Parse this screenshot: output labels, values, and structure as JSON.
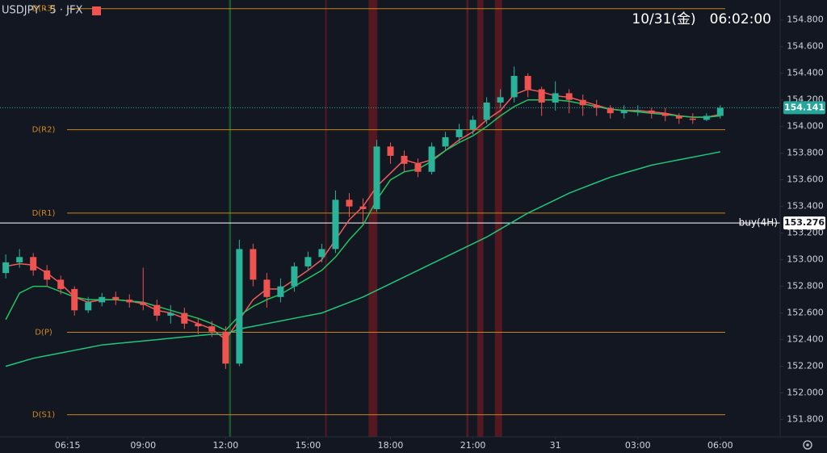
{
  "chart_data": {
    "type": "candlestick",
    "title": "USDJPY · 5 · JFX",
    "subtitle": "10/31(金)　06:02:00",
    "up_color": "#2bb39a",
    "down_color": "#ef5350",
    "x": [
      4.0,
      4.5,
      5.0,
      5.5,
      6.0,
      6.5,
      7.0,
      7.5,
      8.0,
      8.5,
      9.0,
      9.5,
      10.0,
      10.5,
      11.0,
      11.5,
      12.0,
      12.5,
      13.0,
      13.5,
      14.0,
      14.5,
      15.0,
      15.5,
      16.0,
      16.5,
      17.0,
      17.5,
      18.0,
      18.5,
      19.0,
      19.5,
      20.0,
      20.5,
      21.0,
      21.5,
      22.0,
      22.5,
      23.0,
      23.5,
      24.0,
      24.5,
      25.0,
      25.5,
      26.0,
      26.5,
      27.0,
      27.5,
      28.0,
      28.5,
      29.0,
      29.5,
      30.0
    ],
    "open": [
      152.9,
      152.98,
      153.02,
      152.92,
      152.85,
      152.78,
      152.62,
      152.68,
      152.72,
      152.7,
      152.68,
      152.66,
      152.58,
      152.6,
      152.52,
      152.5,
      152.46,
      152.22,
      153.08,
      152.85,
      152.72,
      152.8,
      152.95,
      153.02,
      153.08,
      153.45,
      153.4,
      153.38,
      153.85,
      153.78,
      153.72,
      153.66,
      153.85,
      153.92,
      153.98,
      154.05,
      154.18,
      154.22,
      154.38,
      154.28,
      154.18,
      154.25,
      154.2,
      154.16,
      154.14,
      154.1,
      154.12,
      154.12,
      154.1,
      154.08,
      154.06,
      154.05,
      154.08
    ],
    "high": [
      153.04,
      153.08,
      153.05,
      152.96,
      152.88,
      152.8,
      152.72,
      152.75,
      152.76,
      152.74,
      152.94,
      152.7,
      152.66,
      152.64,
      152.56,
      152.54,
      152.5,
      153.15,
      153.12,
      152.9,
      152.86,
      152.98,
      153.06,
      153.12,
      153.52,
      153.5,
      153.46,
      153.9,
      153.88,
      153.82,
      153.76,
      153.88,
      153.96,
      154.02,
      154.08,
      154.22,
      154.28,
      154.45,
      154.4,
      154.3,
      154.34,
      154.28,
      154.24,
      154.2,
      154.16,
      154.16,
      154.16,
      154.14,
      154.14,
      154.1,
      154.1,
      154.1,
      154.16
    ],
    "low": [
      152.86,
      152.94,
      152.88,
      152.8,
      152.74,
      152.58,
      152.6,
      152.65,
      152.66,
      152.64,
      152.62,
      152.54,
      152.52,
      152.48,
      152.44,
      152.42,
      152.18,
      152.2,
      152.8,
      152.64,
      152.68,
      152.76,
      152.92,
      152.98,
      153.05,
      153.32,
      153.28,
      153.36,
      153.72,
      153.66,
      153.62,
      153.64,
      153.82,
      153.88,
      153.94,
      154.02,
      154.14,
      154.18,
      154.22,
      154.08,
      154.12,
      154.1,
      154.08,
      154.08,
      154.06,
      154.06,
      154.08,
      154.06,
      154.04,
      154.02,
      154.02,
      154.04,
      154.06
    ],
    "close": [
      152.98,
      153.02,
      152.92,
      152.85,
      152.78,
      152.62,
      152.68,
      152.72,
      152.7,
      152.68,
      152.66,
      152.58,
      152.6,
      152.52,
      152.5,
      152.46,
      152.22,
      153.08,
      152.85,
      152.72,
      152.8,
      152.95,
      153.02,
      153.08,
      153.45,
      153.4,
      153.38,
      153.85,
      153.78,
      153.72,
      153.66,
      153.85,
      153.92,
      153.98,
      154.05,
      154.18,
      154.22,
      154.38,
      154.28,
      154.18,
      154.25,
      154.2,
      154.16,
      154.14,
      154.1,
      154.12,
      154.12,
      154.1,
      154.08,
      154.06,
      154.05,
      154.08,
      154.141
    ],
    "lines": [
      {
        "color": "#f05a5a",
        "values": [
          152.95,
          152.97,
          152.96,
          152.9,
          152.82,
          152.72,
          152.68,
          152.7,
          152.7,
          152.69,
          152.67,
          152.62,
          152.6,
          152.56,
          152.52,
          152.48,
          152.4,
          152.55,
          152.7,
          152.78,
          152.78,
          152.85,
          152.92,
          153.0,
          153.15,
          153.3,
          153.4,
          153.55,
          153.65,
          153.75,
          153.72,
          153.75,
          153.82,
          153.9,
          153.96,
          154.05,
          154.12,
          154.24,
          154.28,
          154.26,
          154.23,
          154.22,
          154.19,
          154.16,
          154.13,
          154.12,
          154.12,
          154.11,
          154.1,
          154.08,
          154.07,
          154.07,
          154.09
        ]
      },
      {
        "color": "#22c55e",
        "values": [
          152.55,
          152.75,
          152.8,
          152.8,
          152.76,
          152.72,
          152.7,
          152.7,
          152.7,
          152.69,
          152.68,
          152.65,
          152.62,
          152.59,
          152.56,
          152.52,
          152.47,
          152.58,
          152.65,
          152.7,
          152.74,
          152.8,
          152.86,
          152.92,
          153.02,
          153.15,
          153.26,
          153.45,
          153.6,
          153.66,
          153.68,
          153.74,
          153.82,
          153.88,
          153.93,
          154.0,
          154.08,
          154.15,
          154.2,
          154.2,
          154.2,
          154.19,
          154.17,
          154.15,
          154.13,
          154.12,
          154.11,
          154.1,
          154.09,
          154.08,
          154.07,
          154.07,
          154.08
        ]
      },
      {
        "color": "#1fc77a",
        "values": [
          152.2,
          152.23,
          152.26,
          152.28,
          152.3,
          152.32,
          152.34,
          152.36,
          152.37,
          152.38,
          152.39,
          152.4,
          152.41,
          152.42,
          152.43,
          152.44,
          152.44,
          152.48,
          152.5,
          152.52,
          152.54,
          152.56,
          152.58,
          152.6,
          152.64,
          152.68,
          152.72,
          152.77,
          152.82,
          152.87,
          152.92,
          152.97,
          153.02,
          153.07,
          153.12,
          153.17,
          153.23,
          153.29,
          153.35,
          153.4,
          153.45,
          153.5,
          153.54,
          153.58,
          153.62,
          153.65,
          153.68,
          153.71,
          153.73,
          153.75,
          153.77,
          153.79,
          153.81
        ]
      }
    ],
    "levels": [
      {
        "label": "D(R3)",
        "value": 154.885,
        "color": "#c8841a"
      },
      {
        "label": "D(R2)",
        "value": 153.976,
        "color": "#c8841a"
      },
      {
        "label": "D(R1)",
        "value": 153.35,
        "color": "#c8841a"
      },
      {
        "label": "D(P)",
        "value": 152.455,
        "color": "#c8841a"
      },
      {
        "label": "D(S1)",
        "value": 151.836,
        "color": "#c8841a"
      }
    ],
    "order_line": {
      "label": "buy(4H)",
      "value": 153.276,
      "color": "#ffffff"
    },
    "last_price": 154.141,
    "last_price_color": "#26a69a",
    "events": [
      {
        "start": 12.12,
        "end": 12.2,
        "color": "#1e6b2e"
      },
      {
        "start": 15.62,
        "end": 15.68,
        "color": "#6b1a22"
      },
      {
        "start": 17.2,
        "end": 17.52,
        "color": "#6b1a22"
      },
      {
        "start": 20.76,
        "end": 20.84,
        "color": "#6b1a22"
      },
      {
        "start": 21.16,
        "end": 21.38,
        "color": "#6b1a22"
      },
      {
        "start": 21.8,
        "end": 22.06,
        "color": "#6b1a22"
      }
    ],
    "xlim": [
      3.79,
      32.18
    ],
    "ylim": [
      151.67,
      154.95
    ],
    "xticks": [
      {
        "value": 6.25,
        "label": "06:15"
      },
      {
        "value": 9,
        "label": "09:00"
      },
      {
        "value": 12,
        "label": "12:00"
      },
      {
        "value": 15,
        "label": "15:00"
      },
      {
        "value": 18,
        "label": "18:00"
      },
      {
        "value": 21,
        "label": "21:00"
      },
      {
        "value": 24,
        "label": "31"
      },
      {
        "value": 27,
        "label": "03:00"
      },
      {
        "value": 30,
        "label": "06:00"
      }
    ],
    "yticks": [
      {
        "value": 151.8,
        "label": "151.800"
      },
      {
        "value": 152.0,
        "label": "152.000"
      },
      {
        "value": 152.2,
        "label": "152.200"
      },
      {
        "value": 152.4,
        "label": "152.400"
      },
      {
        "value": 152.6,
        "label": "152.600"
      },
      {
        "value": 152.8,
        "label": "152.800"
      },
      {
        "value": 153.0,
        "label": "153.000"
      },
      {
        "value": 153.2,
        "label": "153.200"
      },
      {
        "value": 153.4,
        "label": "153.400"
      },
      {
        "value": 153.6,
        "label": "153.600"
      },
      {
        "value": 153.8,
        "label": "153.800"
      },
      {
        "value": 154.0,
        "label": "154.000"
      },
      {
        "value": 154.2,
        "label": "154.200"
      },
      {
        "value": 154.4,
        "label": "154.400"
      },
      {
        "value": 154.6,
        "label": "154.600"
      },
      {
        "value": 154.8,
        "label": "154.800"
      }
    ]
  }
}
